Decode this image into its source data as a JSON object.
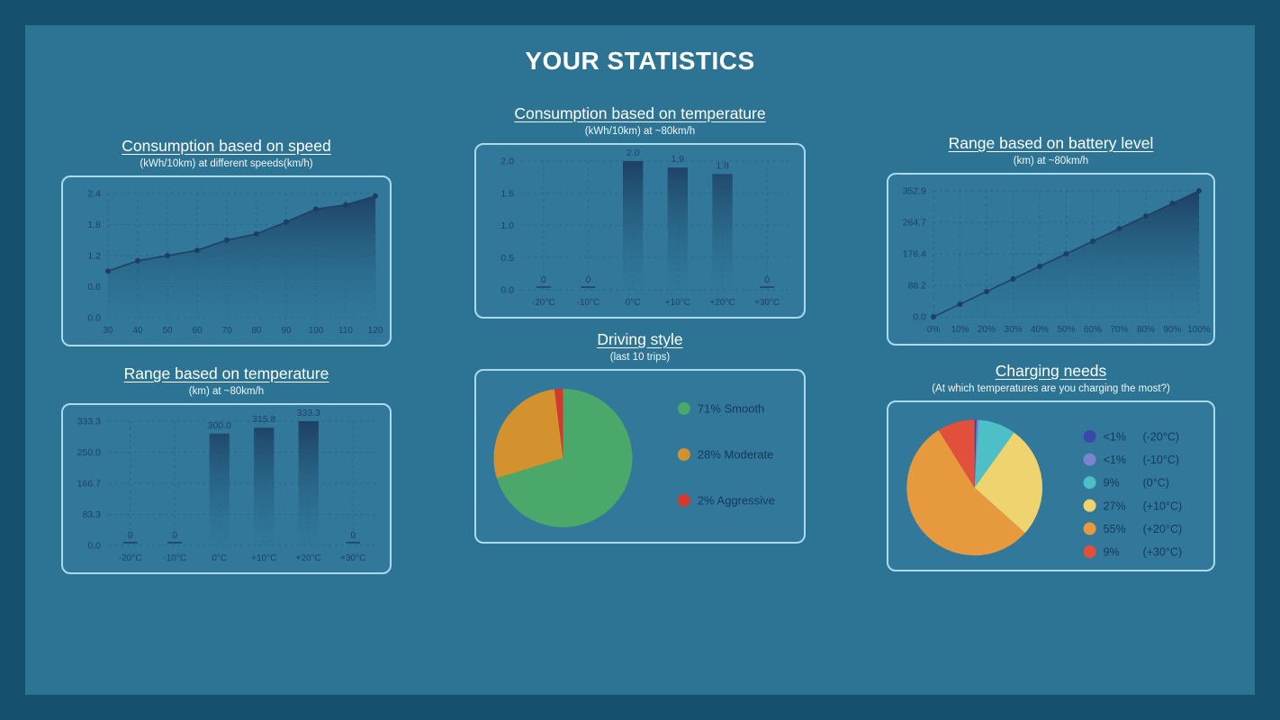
{
  "page_title": "YOUR STATISTICS",
  "colors": {
    "frame": "#16506f",
    "panel": "#2d7494",
    "card_bg": "#31789b",
    "card_border": "#a9dbec",
    "title_text": "#ffffff",
    "axis_text": "#1d4265",
    "grid": "#1c5d7e",
    "series_dark": "#1d3f63",
    "legend_text": "#16395a"
  },
  "chart_data": [
    {
      "id": "consumption-speed",
      "type": "area",
      "title": "Consumption based on speed",
      "subtitle": "(kWh/10km) at different speeds(km/h)",
      "x_labels": [
        "30",
        "40",
        "50",
        "60",
        "70",
        "80",
        "90",
        "100",
        "110",
        "120"
      ],
      "values": [
        0.9,
        1.1,
        1.2,
        1.3,
        1.5,
        1.62,
        1.85,
        2.1,
        2.18,
        2.35
      ],
      "yticks": [
        {
          "v": 0,
          "label": "0.0"
        },
        {
          "v": 0.6,
          "label": "0.6"
        },
        {
          "v": 1.2,
          "label": "1.2"
        },
        {
          "v": 1.8,
          "label": "1.8"
        },
        {
          "v": 2.4,
          "label": "2.4"
        }
      ],
      "ymax": 2.4
    },
    {
      "id": "consumption-temperature",
      "type": "bar",
      "title": "Consumption based on temperature",
      "subtitle": "(kWh/10km) at ~80km/h",
      "x_labels": [
        "-20°C",
        "-10°C",
        "0°C",
        "+10°C",
        "+20°C",
        "+30°C"
      ],
      "values": [
        0,
        0,
        2.0,
        1.9,
        1.8,
        0
      ],
      "value_labels": [
        "0",
        "0",
        "2.0",
        "1.9",
        "1.8",
        "0"
      ],
      "yticks": [
        {
          "v": 0,
          "label": "0.0"
        },
        {
          "v": 0.5,
          "label": "0.5"
        },
        {
          "v": 1.0,
          "label": "1.0"
        },
        {
          "v": 1.5,
          "label": "1.5"
        },
        {
          "v": 2.0,
          "label": "2.0"
        }
      ],
      "ymax": 2.0
    },
    {
      "id": "range-battery",
      "type": "area",
      "title": "Range based on battery level",
      "subtitle": "(km) at ~80km/h",
      "x_labels": [
        "0%",
        "10%",
        "20%",
        "30%",
        "40%",
        "50%",
        "60%",
        "70%",
        "80%",
        "90%",
        "100%"
      ],
      "values": [
        0,
        35.3,
        70.6,
        105.9,
        141.2,
        176.4,
        211.7,
        247.1,
        282.3,
        317.6,
        352.9
      ],
      "yticks": [
        {
          "v": 0,
          "label": "0.0"
        },
        {
          "v": 88.2,
          "label": "88.2"
        },
        {
          "v": 176.4,
          "label": "176.4"
        },
        {
          "v": 264.7,
          "label": "264.7"
        },
        {
          "v": 352.9,
          "label": "352.9"
        }
      ],
      "ymax": 352.9
    },
    {
      "id": "range-temperature",
      "type": "bar",
      "title": "Range based on temperature",
      "subtitle": "(km) at ~80km/h",
      "x_labels": [
        "-20°C",
        "-10°C",
        "0°C",
        "+10°C",
        "+20°C",
        "+30°C"
      ],
      "values": [
        0,
        0,
        300.0,
        315.8,
        333.3,
        0
      ],
      "value_labels": [
        "0",
        "0",
        "300.0",
        "315.8",
        "333.3",
        "0"
      ],
      "yticks": [
        {
          "v": 0,
          "label": "0.0"
        },
        {
          "v": 83.3,
          "label": "83.3"
        },
        {
          "v": 166.7,
          "label": "166.7"
        },
        {
          "v": 250.0,
          "label": "250.0"
        },
        {
          "v": 333.3,
          "label": "333.3"
        }
      ],
      "ymax": 333.3
    },
    {
      "id": "driving-style",
      "type": "pie",
      "title": "Driving style",
      "subtitle": "(last 10 trips)",
      "legend_columns": false,
      "slices": [
        {
          "value": 71,
          "color": "#4aa86a",
          "pct": "71%",
          "label": "Smooth"
        },
        {
          "value": 28,
          "color": "#d3922e",
          "pct": "28%",
          "label": "Moderate"
        },
        {
          "value": 2,
          "color": "#d6382e",
          "pct": "2%",
          "label": "Aggressive"
        }
      ]
    },
    {
      "id": "charging-needs",
      "type": "pie",
      "title": "Charging needs",
      "subtitle": "(At which temperatures are you charging the most?)",
      "legend_columns": true,
      "slices": [
        {
          "value": 0.5,
          "color": "#3949ab",
          "pct": "<1%",
          "label": "(-20°C)"
        },
        {
          "value": 0.5,
          "color": "#7986cb",
          "pct": "<1%",
          "label": "(-10°C)"
        },
        {
          "value": 9,
          "color": "#4cc0c6",
          "pct": "9%",
          "label": "(0°C)"
        },
        {
          "value": 27,
          "color": "#eed36f",
          "pct": "27%",
          "label": "(+10°C)"
        },
        {
          "value": 55,
          "color": "#e69a3d",
          "pct": "55%",
          "label": "(+20°C)"
        },
        {
          "value": 9,
          "color": "#e2503c",
          "pct": "9%",
          "label": "(+30°C)"
        }
      ]
    }
  ]
}
